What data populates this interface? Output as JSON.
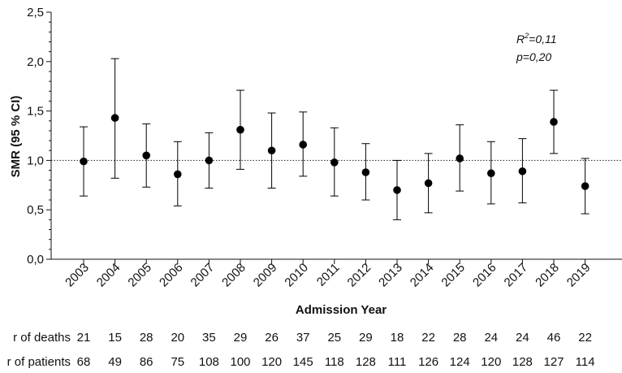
{
  "chart_data": {
    "type": "scatter",
    "xlabel": "Admission Year",
    "ylabel": "SMR (95 % CI)",
    "ylim": [
      0,
      2.5
    ],
    "yticks": [
      "0,0",
      "0,5",
      "1,0",
      "1,5",
      "2,0",
      "2,5"
    ],
    "ytick_values": [
      0,
      0.5,
      1.0,
      1.5,
      2.0,
      2.5
    ],
    "reference_line": 1.0,
    "grid": false,
    "annotation": {
      "r2_prefix": "R",
      "r2_sup": "2",
      "r2_value": "=0,11",
      "p": "p=0,20"
    },
    "categories": [
      "2003",
      "2004",
      "2005",
      "2006",
      "2007",
      "2008",
      "2009",
      "2010",
      "2011",
      "2012",
      "2013",
      "2014",
      "2015",
      "2016",
      "2017",
      "2018",
      "2019"
    ],
    "smr": [
      0.99,
      1.43,
      1.05,
      0.86,
      1.0,
      1.31,
      1.1,
      1.16,
      0.98,
      0.88,
      0.7,
      0.77,
      1.02,
      0.87,
      0.89,
      1.39,
      0.74
    ],
    "lower": [
      0.64,
      0.82,
      0.73,
      0.54,
      0.72,
      0.91,
      0.72,
      0.84,
      0.64,
      0.6,
      0.4,
      0.47,
      0.69,
      0.56,
      0.57,
      1.07,
      0.46
    ],
    "upper": [
      1.34,
      2.03,
      1.37,
      1.19,
      1.28,
      1.71,
      1.48,
      1.49,
      1.33,
      1.17,
      1.0,
      1.07,
      1.36,
      1.19,
      1.22,
      1.71,
      1.02
    ]
  },
  "table": {
    "deaths_label": "r of deaths",
    "patients_label": "r of patients",
    "deaths": [
      "21",
      "15",
      "28",
      "20",
      "35",
      "29",
      "26",
      "37",
      "25",
      "29",
      "18",
      "22",
      "28",
      "24",
      "24",
      "46",
      "22"
    ],
    "patients": [
      "68",
      "49",
      "86",
      "75",
      "108",
      "100",
      "120",
      "145",
      "118",
      "128",
      "111",
      "126",
      "124",
      "120",
      "128",
      "127",
      "114"
    ]
  },
  "colors": {
    "marker": "#000000",
    "axis": "#111111",
    "reference": "#222222"
  }
}
